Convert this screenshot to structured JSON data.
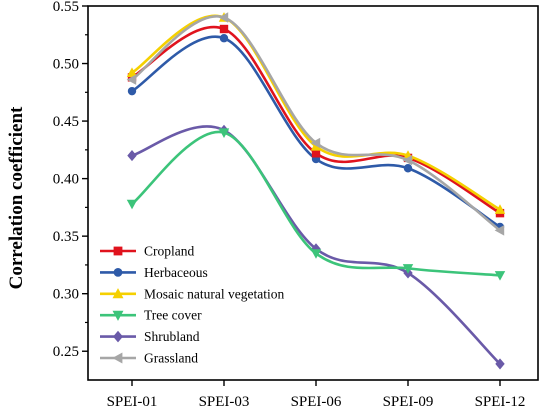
{
  "chart_data": {
    "type": "line",
    "title": "",
    "xlabel": "",
    "ylabel": "Correlation coefficient",
    "categories": [
      "SPEI-01",
      "SPEI-03",
      "SPEI-06",
      "SPEI-09",
      "SPEI-12"
    ],
    "ylim": [
      0.225,
      0.55
    ],
    "yticks": [
      0.25,
      0.3,
      0.35,
      0.4,
      0.45,
      0.5,
      0.55
    ],
    "ytick_labels": [
      "0.25",
      "0.30",
      "0.35",
      "0.40",
      "0.45",
      "0.50",
      "0.55"
    ],
    "grid": false,
    "legend_position": "bottom-left",
    "smooth": true,
    "series": [
      {
        "name": "Cropland",
        "values": [
          0.488,
          0.53,
          0.422,
          0.418,
          0.37
        ],
        "color": "#e0131d",
        "marker": "square"
      },
      {
        "name": "Herbaceous",
        "values": [
          0.476,
          0.522,
          0.417,
          0.409,
          0.358
        ],
        "color": "#2e5aa8",
        "marker": "circle"
      },
      {
        "name": "Mosaic natural vegetation",
        "values": [
          0.492,
          0.54,
          0.428,
          0.42,
          0.373
        ],
        "color": "#f5d000",
        "marker": "triangle-up"
      },
      {
        "name": "Tree cover",
        "values": [
          0.378,
          0.44,
          0.335,
          0.322,
          0.316
        ],
        "color": "#3cc47a",
        "marker": "triangle-down"
      },
      {
        "name": "Shrubland",
        "values": [
          0.42,
          0.442,
          0.339,
          0.318,
          0.239
        ],
        "color": "#6a5aa8",
        "marker": "diamond"
      },
      {
        "name": "Grassland",
        "values": [
          0.486,
          0.54,
          0.431,
          0.416,
          0.355
        ],
        "color": "#a6a6a6",
        "marker": "triangle-left"
      }
    ]
  }
}
